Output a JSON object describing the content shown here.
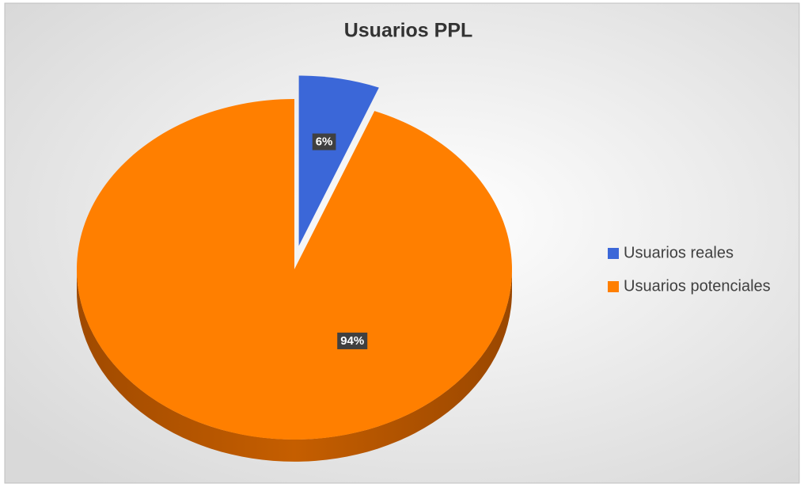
{
  "chart_data": {
    "type": "pie",
    "title": "Usuarios PPL",
    "categories": [
      "Usuarios reales",
      "Usuarios potenciales"
    ],
    "values": [
      6,
      94
    ],
    "value_labels": [
      "6%",
      "94%"
    ],
    "colors": [
      "#3b67d8",
      "#ff7f00"
    ],
    "legend": "right"
  }
}
